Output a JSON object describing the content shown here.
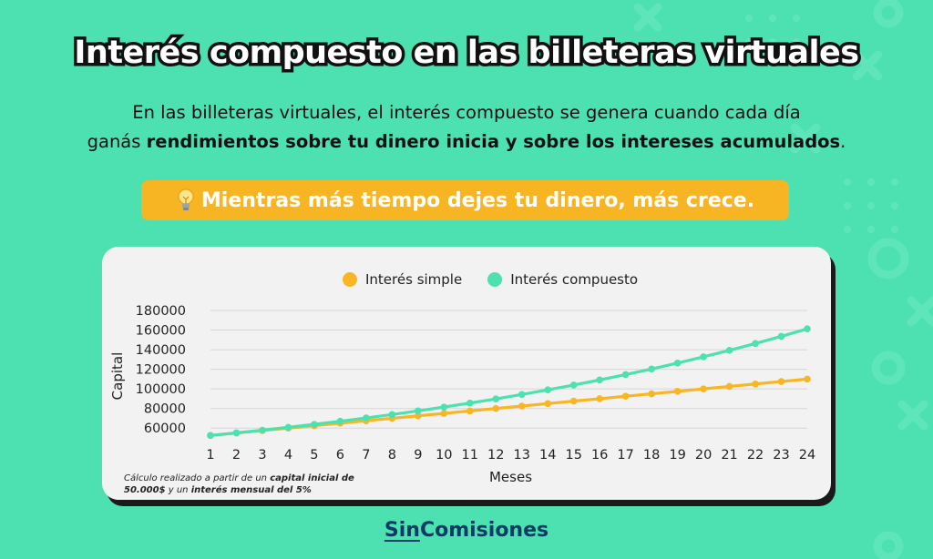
{
  "title": "Interés compuesto en las billeteras virtuales",
  "subtitle": {
    "line1": "En las billeteras virtuales, el interés compuesto se genera cuando cada día",
    "line2_prefix": "ganás ",
    "line2_bold": "rendimientos sobre tu dinero inicia y sobre los intereses acumulados",
    "line2_suffix": "."
  },
  "callout": {
    "icon": "lightbulb-icon",
    "text": "Mientras más tiempo dejes tu dinero, más crece."
  },
  "colors": {
    "background": "#4DE0B0",
    "callout": "#F7B524",
    "simple": "#F9B624",
    "compuesto": "#4DE0B0",
    "brand": "#0d3b66"
  },
  "chart_data": {
    "type": "line",
    "xlabel": "Meses",
    "ylabel": "Capital",
    "x": [
      1,
      2,
      3,
      4,
      5,
      6,
      7,
      8,
      9,
      10,
      11,
      12,
      13,
      14,
      15,
      16,
      17,
      18,
      19,
      20,
      21,
      22,
      23,
      24
    ],
    "yticks": [
      60000,
      80000,
      100000,
      120000,
      140000,
      160000,
      180000
    ],
    "ylim": [
      50000,
      180000
    ],
    "grid": true,
    "legend_position": "top-center",
    "series": [
      {
        "name": "Interés simple",
        "color": "#F9B624",
        "values": [
          52500,
          55000,
          57500,
          60000,
          62500,
          65000,
          67500,
          70000,
          72500,
          75000,
          77500,
          80000,
          82500,
          85000,
          87500,
          90000,
          92500,
          95000,
          97500,
          100000,
          102500,
          105000,
          107500,
          110000
        ]
      },
      {
        "name": "Interés compuesto",
        "color": "#4DE0B0",
        "values": [
          52500,
          55125,
          57881,
          60775,
          63814,
          67005,
          70355,
          73873,
          77566,
          81445,
          85517,
          89793,
          94282,
          98997,
          103946,
          109144,
          114601,
          120331,
          126348,
          132665,
          139298,
          146263,
          153576,
          161255
        ]
      }
    ]
  },
  "footnote": {
    "p1": "Cálculo realizado a partir de un ",
    "b1": "capital inicial de 50.000$",
    "p2": " y un ",
    "b2": "interés mensual del 5%"
  },
  "brand": {
    "part1": "Sin",
    "part2": "Comisiones"
  }
}
